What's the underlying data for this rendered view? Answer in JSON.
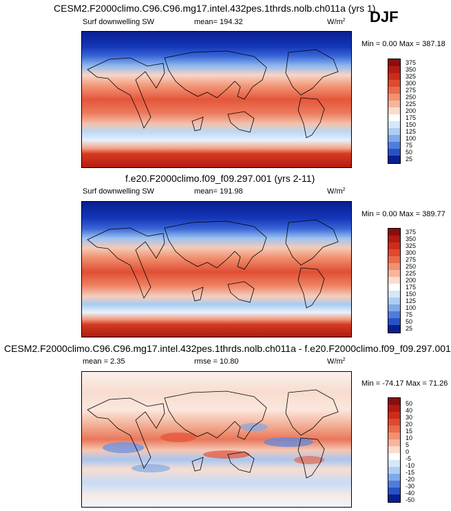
{
  "season": "DJF",
  "units_base": "W/m",
  "units_exp": "2",
  "chart_data": [
    {
      "type": "heatmap",
      "title": "CESM2.F2000climo.C96.C96.mg17.intel.432pes.1thrds.nolb.ch011a (yrs 1)",
      "variable": "Surf downwelling SW",
      "stat_label": "mean=",
      "stat_value": "194.32",
      "min_label": "Min =",
      "min_value": "0.00",
      "max_label": "Max =",
      "max_value": "387.18",
      "colorbar_levels": [
        "375",
        "350",
        "325",
        "300",
        "275",
        "250",
        "225",
        "200",
        "175",
        "150",
        "125",
        "100",
        "75",
        "50",
        "25"
      ]
    },
    {
      "type": "heatmap",
      "title": "f.e20.F2000climo.f09_f09.297.001 (yrs 2-11)",
      "variable": "Surf downwelling SW",
      "stat_label": "mean=",
      "stat_value": "191.98",
      "min_label": "Min =",
      "min_value": "0.00",
      "max_label": "Max =",
      "max_value": "389.77",
      "colorbar_levels": [
        "375",
        "350",
        "325",
        "300",
        "275",
        "250",
        "225",
        "200",
        "175",
        "150",
        "125",
        "100",
        "75",
        "50",
        "25"
      ]
    },
    {
      "type": "heatmap",
      "title": "CESM2.F2000climo.C96.C96.mg17.intel.432pes.1thrds.nolb.ch011a - f.e20.F2000climo.f09_f09.297.001",
      "stat_label": "mean =",
      "stat_value": "2.35",
      "rmse_label": "rmse =",
      "rmse_value": "10.80",
      "min_label": "Min =",
      "min_value": "-74.17",
      "max_label": "Max =",
      "max_value": "71.26",
      "colorbar_levels": [
        "50",
        "40",
        "30",
        "20",
        "15",
        "10",
        "5",
        "0",
        "-5",
        "-10",
        "-15",
        "-20",
        "-30",
        "-40",
        "-50"
      ]
    }
  ]
}
